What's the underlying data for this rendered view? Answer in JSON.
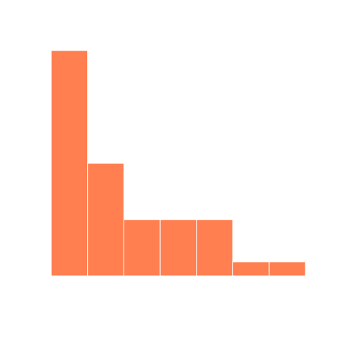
{
  "chart_data": {
    "type": "bar",
    "bins": 7,
    "values": [
      16,
      8,
      4,
      4,
      4,
      1,
      1
    ],
    "ylim": [
      0,
      16
    ],
    "grid": false,
    "bar_color": "#FF7F50",
    "bar_edge_color": "#ffffff"
  }
}
